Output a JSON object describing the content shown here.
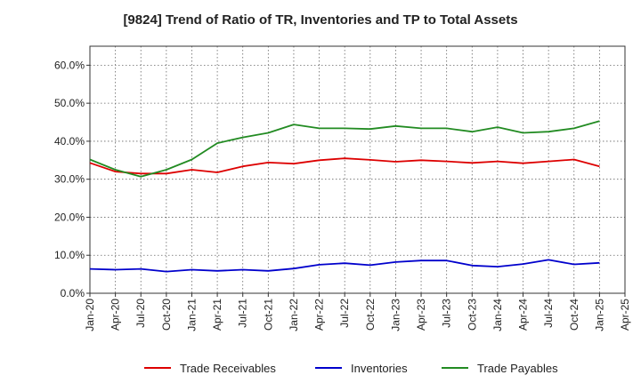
{
  "chart_data": {
    "type": "line",
    "title": "[9824]  Trend of Ratio of TR, Inventories and TP to Total Assets",
    "xlabel": "",
    "ylabel": "",
    "x_tick_labels": [
      "Jan-20",
      "Apr-20",
      "Jul-20",
      "Oct-20",
      "Jan-21",
      "Apr-21",
      "Jul-21",
      "Oct-21",
      "Jan-22",
      "Apr-22",
      "Jul-22",
      "Oct-22",
      "Jan-23",
      "Apr-23",
      "Jul-23",
      "Oct-23",
      "Jan-24",
      "Apr-24",
      "Jul-24",
      "Oct-24",
      "Jan-25",
      "Apr-25"
    ],
    "y_tick_labels": [
      "0.0%",
      "10.0%",
      "20.0%",
      "30.0%",
      "40.0%",
      "50.0%",
      "60.0%"
    ],
    "y_ticks": [
      0,
      10,
      20,
      30,
      40,
      50,
      60
    ],
    "ylim": [
      0,
      65
    ],
    "grid": true,
    "legend_position": "bottom",
    "x": [
      "Jan-20",
      "Apr-20",
      "Jul-20",
      "Oct-20",
      "Jan-21",
      "Apr-21",
      "Jul-21",
      "Oct-21",
      "Jan-22",
      "Apr-22",
      "Jul-22",
      "Oct-22",
      "Jan-23",
      "Apr-23",
      "Jul-23",
      "Oct-23",
      "Jan-24",
      "Apr-24",
      "Jul-24",
      "Oct-24",
      "Jan-25"
    ],
    "series": [
      {
        "name": "Trade Receivables",
        "color": "#dd0000",
        "values": [
          34.3,
          32.0,
          31.5,
          31.5,
          32.5,
          31.8,
          33.4,
          34.4,
          34.1,
          35.0,
          35.5,
          35.1,
          34.6,
          35.0,
          34.7,
          34.3,
          34.7,
          34.2,
          34.7,
          35.2,
          33.4
        ]
      },
      {
        "name": "Inventories",
        "color": "#0000cc",
        "values": [
          6.4,
          6.2,
          6.4,
          5.7,
          6.2,
          5.9,
          6.2,
          5.9,
          6.5,
          7.5,
          7.9,
          7.4,
          8.2,
          8.6,
          8.6,
          7.3,
          7.0,
          7.7,
          8.8,
          7.6,
          8.0
        ]
      },
      {
        "name": "Trade Payables",
        "color": "#228b22",
        "values": [
          35.2,
          32.5,
          30.7,
          32.5,
          35.2,
          39.5,
          41.0,
          42.2,
          44.4,
          43.4,
          43.4,
          43.2,
          44.0,
          43.4,
          43.4,
          42.5,
          43.7,
          42.2,
          42.5,
          43.4,
          45.3
        ]
      }
    ]
  }
}
